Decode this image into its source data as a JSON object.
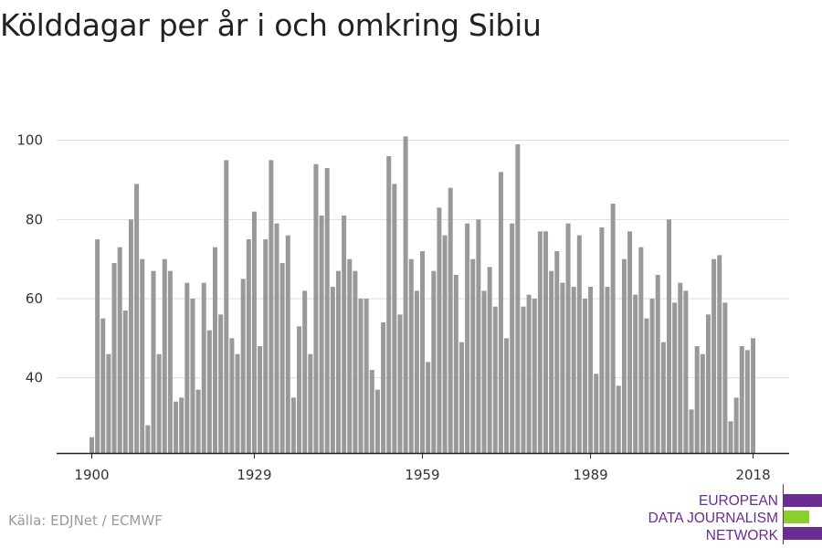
{
  "title": "Kölddagar per år i och omkring Sibiu",
  "source": "Källa: EDJNet / ECMWF",
  "logo": {
    "lines": [
      "EUROPEAN",
      "DATA JOURNALISM",
      "NETWORK"
    ],
    "colors": {
      "primary": "#6b2c91",
      "accent": "#8bcf2a"
    }
  },
  "chart_data": {
    "type": "bar",
    "title": "Kölddagar per år i och omkring Sibiu",
    "xlabel": "",
    "ylabel": "",
    "x_start": 1900,
    "x_end": 2018,
    "x_ticks": [
      1900,
      1929,
      1959,
      1989,
      2018
    ],
    "y_ticks": [
      40,
      60,
      80,
      100
    ],
    "ylim": [
      21,
      102
    ],
    "grid": true,
    "bar_color": "#999999",
    "values": [
      25,
      75,
      55,
      46,
      69,
      73,
      57,
      80,
      89,
      70,
      28,
      67,
      46,
      70,
      67,
      34,
      35,
      64,
      60,
      37,
      64,
      52,
      73,
      56,
      95,
      50,
      46,
      65,
      75,
      82,
      48,
      75,
      95,
      79,
      69,
      76,
      35,
      53,
      62,
      46,
      94,
      81,
      93,
      63,
      67,
      81,
      70,
      67,
      60,
      60,
      42,
      37,
      54,
      96,
      89,
      56,
      101,
      70,
      62,
      72,
      44,
      67,
      83,
      76,
      88,
      66,
      49,
      79,
      70,
      80,
      62,
      68,
      58,
      92,
      50,
      79,
      99,
      58,
      61,
      60,
      77,
      77,
      67,
      72,
      64,
      79,
      63,
      76,
      60,
      63,
      41,
      78,
      63,
      84,
      38,
      70,
      77,
      61,
      73,
      55,
      60,
      66,
      49,
      80,
      59,
      64,
      62,
      32,
      48,
      46,
      56,
      70,
      71,
      59,
      29,
      35,
      48,
      47,
      50
    ]
  }
}
